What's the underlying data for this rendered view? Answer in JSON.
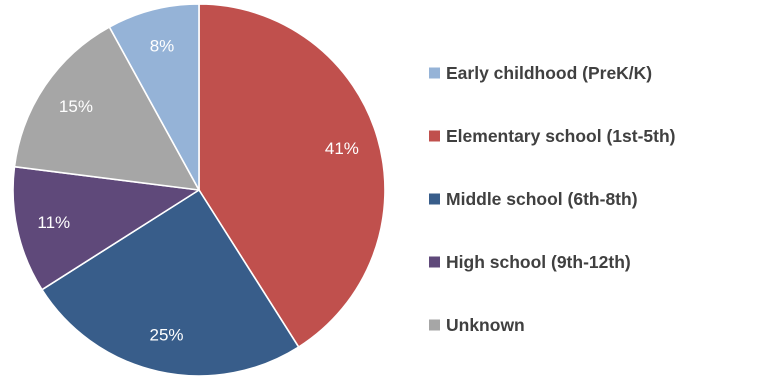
{
  "chart_data": {
    "type": "pie",
    "title": "",
    "start_angle_deg": 0,
    "direction": "clockwise",
    "legend_position": "right",
    "slices": [
      {
        "label": "Elementary school (1st-5th)",
        "value": 41,
        "display": "41%",
        "color": "#C0504D",
        "label_color": "#ffffff"
      },
      {
        "label": "Middle school (6th-8th)",
        "value": 25,
        "display": "25%",
        "color": "#385D8A",
        "label_color": "#ffffff"
      },
      {
        "label": "High school (9th-12th)",
        "value": 11,
        "display": "11%",
        "color": "#5F497A",
        "label_color": "#ffffff"
      },
      {
        "label": "Unknown",
        "value": 15,
        "display": "15%",
        "color": "#A6A6A6",
        "label_color": "#ffffff"
      },
      {
        "label": "Early childhood (PreK/K)",
        "value": 8,
        "display": "8%",
        "color": "#95B3D7",
        "label_color": "#404040"
      }
    ],
    "legend": [
      {
        "label": "Early childhood (PreK/K)",
        "color": "#95B3D7"
      },
      {
        "label": "Elementary school (1st-5th)",
        "color": "#C0504D"
      },
      {
        "label": "Middle school (6th-8th)",
        "color": "#385D8A"
      },
      {
        "label": "High school (9th-12th)",
        "color": "#5F497A"
      },
      {
        "label": "Unknown",
        "color": "#A6A6A6"
      }
    ]
  }
}
